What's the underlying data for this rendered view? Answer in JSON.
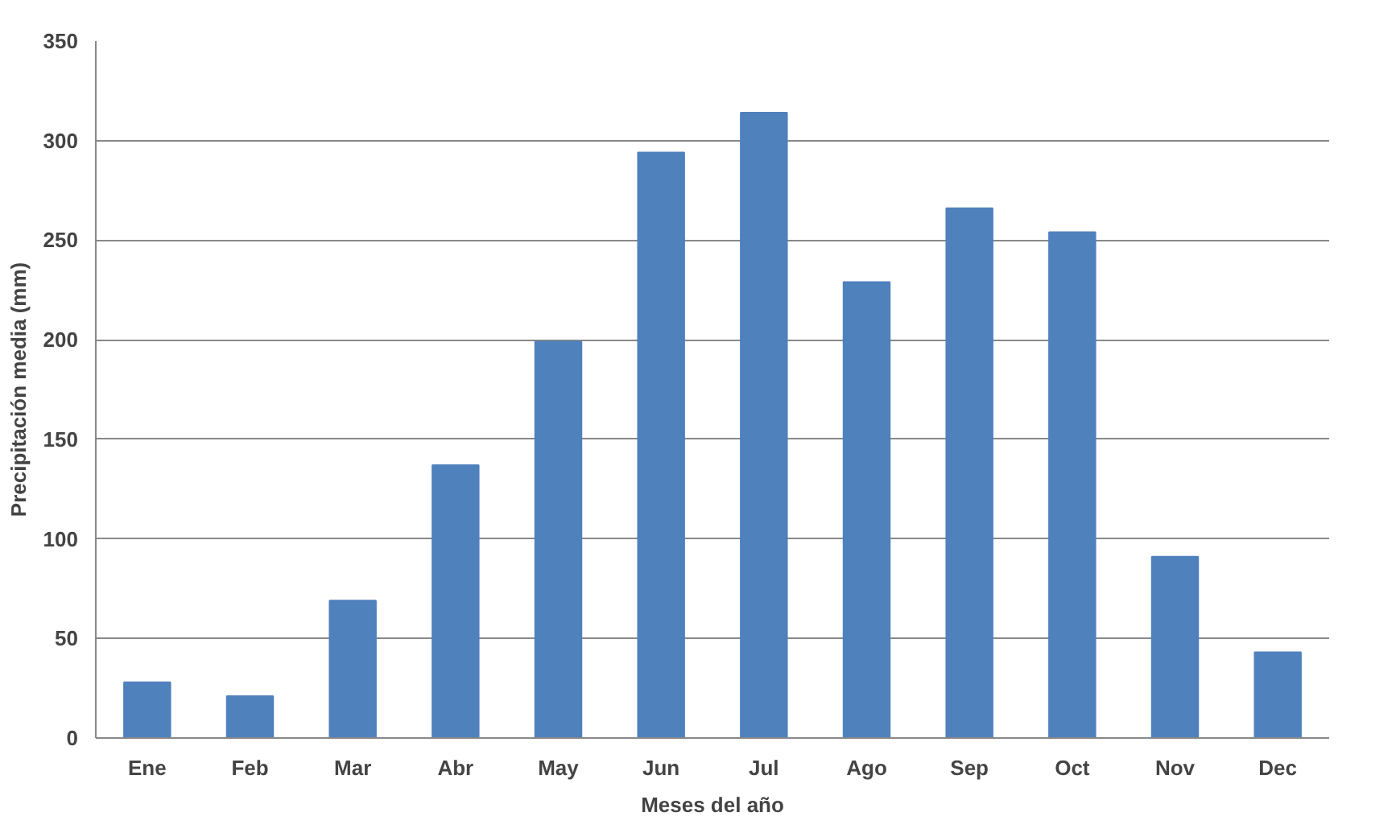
{
  "chart_data": {
    "type": "bar",
    "xlabel": "Meses del año",
    "ylabel": "Precipitación media (mm)",
    "categories": [
      "Ene",
      "Feb",
      "Mar",
      "Abr",
      "May",
      "Jun",
      "Jul",
      "Ago",
      "Sep",
      "Oct",
      "Nov",
      "Dec"
    ],
    "values": [
      28,
      21,
      69,
      137,
      199,
      294,
      314,
      229,
      266,
      254,
      91,
      43
    ],
    "color": "#4f81bd",
    "ylim": [
      0,
      350
    ],
    "yticks": [
      0,
      50,
      100,
      150,
      200,
      250,
      300,
      350
    ],
    "grid": "y"
  }
}
